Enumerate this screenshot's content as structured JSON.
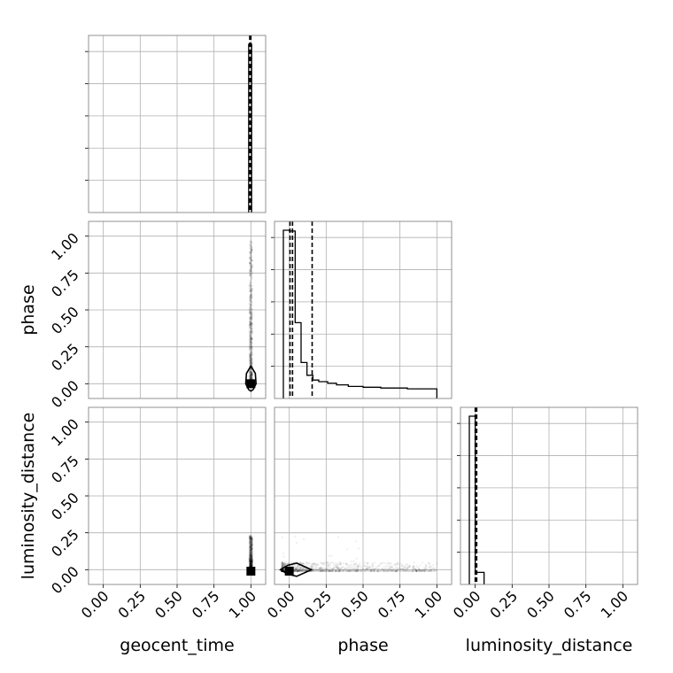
{
  "chart_data": {
    "type": "corner",
    "parameters": [
      "geocent_time",
      "phase",
      "luminosity_distance"
    ],
    "axis_range": [
      -0.1,
      1.1
    ],
    "tick_values": [
      0.0,
      0.25,
      0.5,
      0.75,
      1.0
    ],
    "tick_labels": [
      "0.00",
      "0.25",
      "0.50",
      "0.75",
      "1.00"
    ],
    "grid": true,
    "histograms": [
      {
        "parameter": "geocent_time",
        "bin_edges": [
          0.985,
          0.995,
          1.005
        ],
        "counts": [
          1.0,
          1.0
        ],
        "quantiles": [
          0.992,
          0.996,
          1.0
        ]
      },
      {
        "parameter": "phase",
        "bin_edges": [
          -0.04,
          0.0,
          0.04,
          0.08,
          0.12,
          0.16,
          0.2,
          0.26,
          0.32,
          0.4,
          0.5,
          0.62,
          0.8,
          1.0
        ],
        "counts": [
          1.0,
          0.995,
          0.42,
          0.17,
          0.09,
          0.06,
          0.05,
          0.04,
          0.03,
          0.02,
          0.015,
          0.01,
          0.005
        ],
        "quantiles": [
          0.005,
          0.022,
          0.155
        ]
      },
      {
        "parameter": "luminosity_distance",
        "bin_edges": [
          -0.04,
          0.0,
          0.06
        ],
        "counts": [
          1.0,
          0.02
        ],
        "quantiles": [
          0.0,
          0.005,
          0.01
        ]
      }
    ],
    "scatter_panels": [
      {
        "x": "geocent_time",
        "y": "phase",
        "truth": [
          1.0,
          0.0
        ],
        "sample_column": {
          "x": 1.0,
          "y_range": [
            0.0,
            0.97
          ]
        },
        "contour": [
          [
            1.0,
            0.12
          ],
          [
            1.03,
            0.07
          ],
          [
            1.035,
            0.0
          ],
          [
            1.015,
            -0.04
          ],
          [
            1.0,
            -0.05
          ],
          [
            0.985,
            -0.04
          ],
          [
            0.965,
            0.0
          ],
          [
            0.97,
            0.07
          ]
        ]
      },
      {
        "x": "geocent_time",
        "y": "luminosity_distance",
        "truth": [
          1.0,
          -0.01
        ],
        "sample_column": {
          "x": 1.0,
          "y_range": [
            0.0,
            0.23
          ]
        },
        "contour": []
      },
      {
        "x": "phase",
        "y": "luminosity_distance",
        "truth": [
          0.0,
          -0.01
        ],
        "sample_band": {
          "x_range": [
            -0.05,
            1.0
          ],
          "y_range": [
            -0.01,
            0.05
          ]
        },
        "contour": [
          [
            -0.06,
            0.0
          ],
          [
            -0.01,
            0.03
          ],
          [
            0.05,
            0.045
          ],
          [
            0.15,
            0.0
          ],
          [
            0.05,
            -0.045
          ],
          [
            -0.01,
            -0.03
          ]
        ]
      }
    ]
  }
}
